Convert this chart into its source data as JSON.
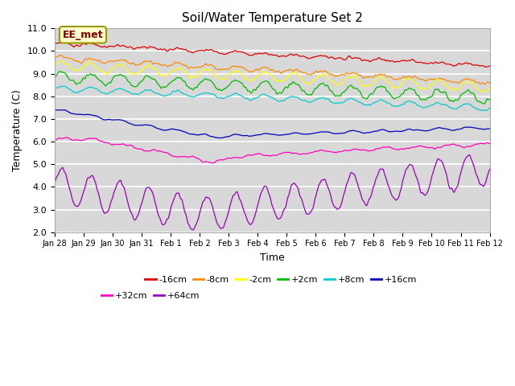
{
  "title": "Soil/Water Temperature Set 2",
  "xlabel": "Time",
  "ylabel": "Temperature (C)",
  "ylim": [
    2.0,
    11.0
  ],
  "yticks": [
    2.0,
    3.0,
    4.0,
    5.0,
    6.0,
    7.0,
    8.0,
    9.0,
    10.0,
    11.0
  ],
  "xtick_labels": [
    "Jan 28",
    "Jan 29",
    "Jan 30",
    "Jan 31",
    "Feb 1",
    "Feb 2",
    "Feb 3",
    "Feb 4",
    "Feb 5",
    "Feb 6",
    "Feb 7",
    "Feb 8",
    "Feb 9",
    "Feb 10",
    "Feb 11",
    "Feb 12"
  ],
  "annotation_text": "EE_met",
  "annotation_fg": "#800000",
  "annotation_bg": "#ffffcc",
  "annotation_border": "#999900",
  "series_colors": [
    "#dd0000",
    "#ff8800",
    "#ffff00",
    "#00bb00",
    "#00cccc",
    "#0000bb",
    "#ff00bb",
    "#9900bb"
  ],
  "series_labels": [
    "-16cm",
    "-8cm",
    "-2cm",
    "+2cm",
    "+8cm",
    "+16cm",
    "+32cm",
    "+64cm"
  ],
  "plot_bg": "#d8d8d8",
  "grid_color": "#ffffff",
  "n_points": 720
}
